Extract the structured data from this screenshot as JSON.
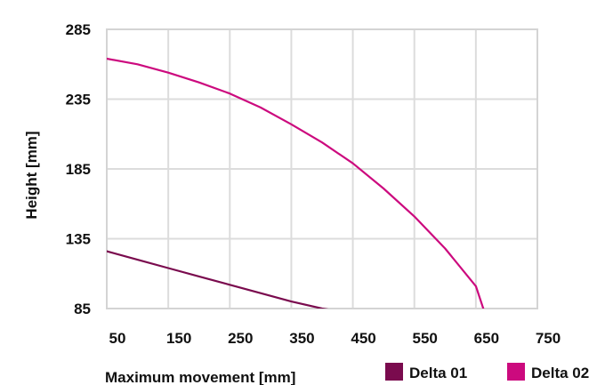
{
  "chart_data": {
    "type": "line",
    "xlabel": "Maximum movement [mm]",
    "ylabel": "Height [mm]",
    "xlim": [
      50,
      750
    ],
    "ylim": [
      85,
      285
    ],
    "x_ticks": [
      50,
      150,
      250,
      350,
      450,
      550,
      650,
      750
    ],
    "y_ticks": [
      85,
      135,
      185,
      235,
      285
    ],
    "grid": true,
    "legend_position": "bottom-right",
    "series": [
      {
        "name": "Delta 01",
        "color": "#7a0b4e",
        "x": [
          50,
          100,
          150,
          200,
          250,
          300,
          350,
          400,
          415
        ],
        "y": [
          126,
          120,
          114,
          108,
          102,
          96,
          90,
          85,
          84
        ]
      },
      {
        "name": "Delta 02",
        "color": "#cc0a7e",
        "x": [
          50,
          100,
          150,
          200,
          250,
          300,
          350,
          400,
          450,
          500,
          550,
          600,
          650,
          662
        ],
        "y": [
          264,
          260,
          254,
          247,
          239,
          229,
          217,
          204,
          189,
          171,
          151,
          128,
          101,
          85
        ]
      }
    ]
  }
}
